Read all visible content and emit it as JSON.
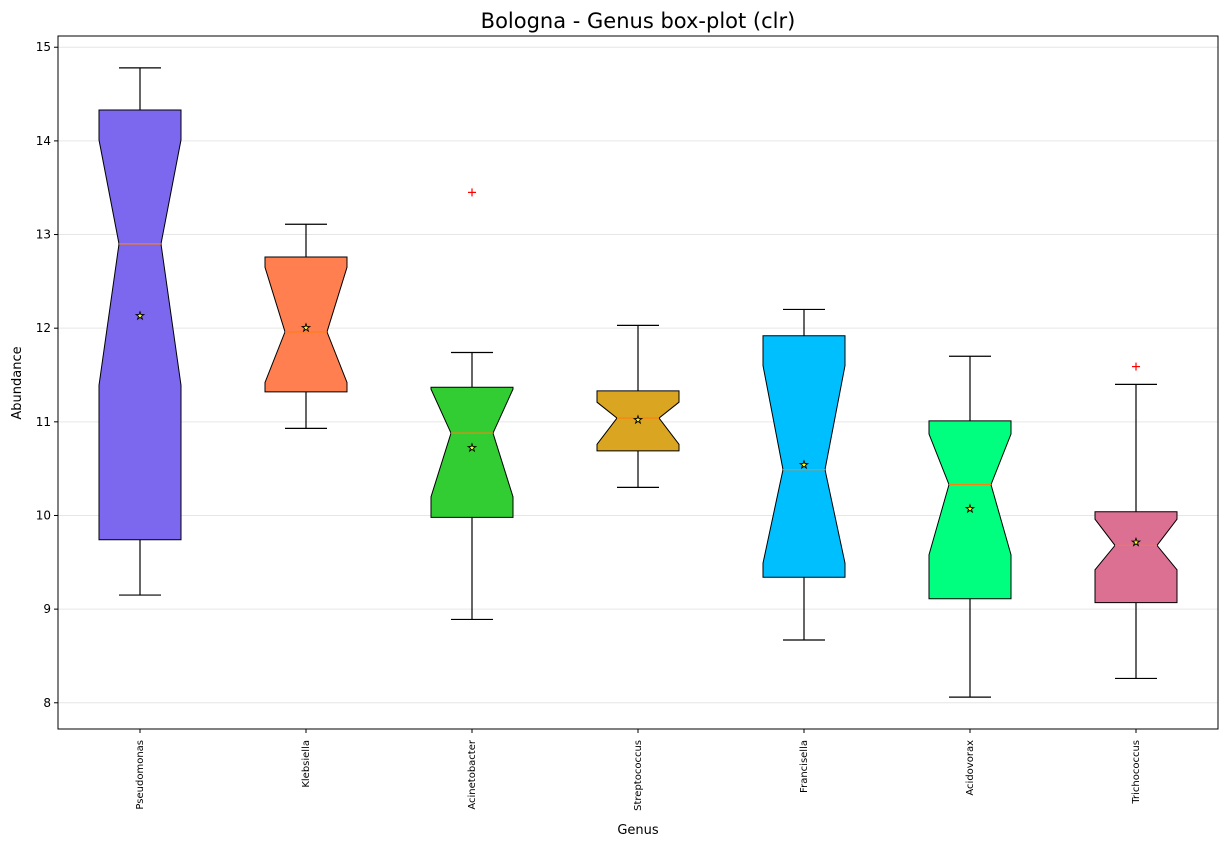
{
  "chart_data": {
    "type": "box",
    "title": "Bologna - Genus box-plot (clr)",
    "xlabel": "Genus",
    "ylabel": "Abundance",
    "ylim": [
      7.72,
      15.12
    ],
    "yticks": [
      8,
      9,
      10,
      11,
      12,
      13,
      14,
      15
    ],
    "grid": "horizontal",
    "notched": true,
    "boxes": [
      {
        "category": "Pseudomonas",
        "color": "#7b68ee",
        "whisker_low": 9.15,
        "q1": 9.74,
        "median": 12.9,
        "q3": 14.33,
        "whisker_high": 14.78,
        "mean": 12.14,
        "notch_low": 11.39,
        "notch_high": 14.01,
        "outliers": []
      },
      {
        "category": "Klebsiella",
        "color": "#ff7f50",
        "whisker_low": 10.93,
        "q1": 11.32,
        "median": 11.96,
        "q3": 12.76,
        "whisker_high": 13.11,
        "mean": 12.01,
        "notch_low": 11.42,
        "notch_high": 12.65,
        "outliers": []
      },
      {
        "category": "Acinetobacter",
        "color": "#32cd32",
        "whisker_low": 8.89,
        "q1": 9.98,
        "median": 10.88,
        "q3": 11.37,
        "whisker_high": 11.74,
        "mean": 10.73,
        "notch_low": 10.2,
        "notch_high": 11.35,
        "outliers": [
          13.45
        ]
      },
      {
        "category": "Streptococcus",
        "color": "#daa520",
        "whisker_low": 10.3,
        "q1": 10.69,
        "median": 11.04,
        "q3": 11.33,
        "whisker_high": 12.03,
        "mean": 11.03,
        "notch_low": 10.76,
        "notch_high": 11.21,
        "outliers": []
      },
      {
        "category": "Francisella",
        "color": "#00bfff",
        "whisker_low": 8.67,
        "q1": 9.34,
        "median": 10.49,
        "q3": 11.92,
        "whisker_high": 12.2,
        "mean": 10.55,
        "notch_low": 9.49,
        "notch_high": 11.6,
        "outliers": []
      },
      {
        "category": "Acidovorax",
        "color": "#00ff7f",
        "whisker_low": 8.06,
        "q1": 9.11,
        "median": 10.33,
        "q3": 11.01,
        "whisker_high": 11.7,
        "mean": 10.08,
        "notch_low": 9.58,
        "notch_high": 10.87,
        "outliers": []
      },
      {
        "category": "Trichococcus",
        "color": "#db7093",
        "whisker_low": 8.26,
        "q1": 9.07,
        "median": 9.68,
        "q3": 10.04,
        "whisker_high": 11.4,
        "mean": 9.72,
        "notch_low": 9.42,
        "notch_high": 9.96,
        "outliers": [
          11.59
        ]
      }
    ]
  }
}
